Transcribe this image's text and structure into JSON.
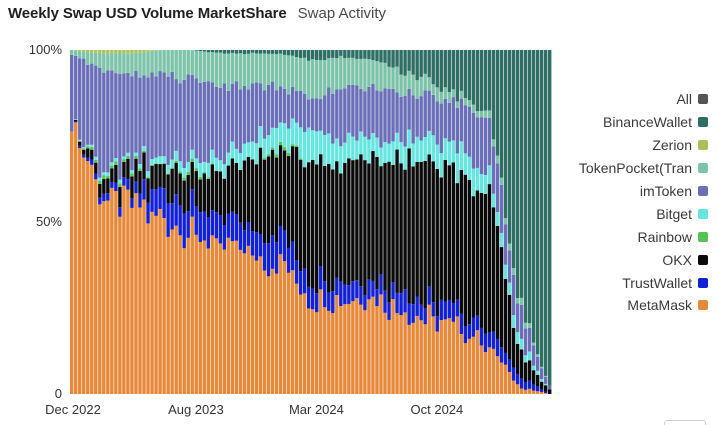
{
  "header": {
    "title": "Weekly Swap USD Volume MarketShare",
    "subtitle": "Swap Activity"
  },
  "chart_data": {
    "type": "area",
    "stacked": true,
    "style": "stacked weekly bars normalized to 100%",
    "title": "Weekly Swap USD Volume MarketShare",
    "xlabel": "",
    "ylabel": "",
    "ylim": [
      0,
      100
    ],
    "y_ticks": [
      "100%",
      "50%",
      "0"
    ],
    "x_ticks": [
      "Dec 2022",
      "Aug 2023",
      "Mar 2024",
      "Oct 2024"
    ],
    "x": [
      "Dec 2022",
      "Feb 2023",
      "Apr 2023",
      "Jun 2023",
      "Aug 2023",
      "Oct 2023",
      "Dec 2023",
      "Feb 2024",
      "Mar 2024",
      "May 2024",
      "Jul 2024",
      "Sep 2024",
      "Oct 2024",
      "Dec 2024",
      "Feb 2025",
      "Mar 2025",
      "Apr 2025"
    ],
    "series": [
      {
        "name": "MetaMask",
        "color": "#e6893a",
        "values": [
          77,
          59,
          56,
          52,
          47,
          43,
          41,
          38,
          28,
          28,
          29,
          24,
          22,
          19,
          14,
          2,
          0
        ]
      },
      {
        "name": "TrustWallet",
        "color": "#1220d6",
        "values": [
          0,
          2,
          3,
          8,
          9,
          8,
          7,
          9,
          6,
          6,
          5,
          6,
          5,
          5,
          5,
          3,
          0
        ]
      },
      {
        "name": "OKX",
        "color": "#0a0a0a",
        "values": [
          0,
          4,
          6,
          8,
          10,
          13,
          20,
          25,
          33,
          34,
          34,
          38,
          40,
          40,
          38,
          8,
          1
        ]
      },
      {
        "name": "Rainbow",
        "color": "#55c255",
        "values": [
          0,
          1,
          1,
          0,
          1,
          0,
          0,
          1,
          0,
          0,
          0,
          0,
          0,
          0,
          0,
          0,
          0
        ]
      },
      {
        "name": "Bitget",
        "color": "#67e6df",
        "values": [
          0,
          1,
          1,
          2,
          3,
          4,
          5,
          7,
          9,
          7,
          6,
          6,
          7,
          8,
          5,
          3,
          0
        ]
      },
      {
        "name": "imToken",
        "color": "#6b6fb8",
        "values": [
          22,
          27,
          26,
          23,
          22,
          21,
          17,
          10,
          10,
          14,
          15,
          13,
          13,
          13,
          16,
          10,
          1
        ]
      },
      {
        "name": "TokenPocket(Tran",
        "color": "#7dc3a9",
        "values": [
          1,
          5,
          6,
          7,
          8,
          10,
          9,
          9,
          11,
          9,
          8,
          7,
          4,
          2,
          2,
          2,
          0
        ]
      },
      {
        "name": "Zerion",
        "color": "#a8c25a",
        "values": [
          0,
          1,
          1,
          0,
          0,
          0,
          0,
          0,
          0,
          0,
          0,
          0,
          0,
          0,
          0,
          0,
          0
        ]
      },
      {
        "name": "BinanceWallet",
        "color": "#2f6e63",
        "values": [
          0,
          0,
          0,
          0,
          0,
          1,
          1,
          1,
          3,
          2,
          3,
          6,
          9,
          13,
          20,
          72,
          98
        ]
      }
    ],
    "legend": {
      "position": "right",
      "items": [
        {
          "label": "All",
          "color": "#555555"
        },
        {
          "label": "BinanceWallet",
          "color": "#2f6e63"
        },
        {
          "label": "Zerion",
          "color": "#a8c25a"
        },
        {
          "label": "TokenPocket(Tran",
          "color": "#7dc3a9"
        },
        {
          "label": "imToken",
          "color": "#6b6fb8"
        },
        {
          "label": "Bitget",
          "color": "#67e6df"
        },
        {
          "label": "Rainbow",
          "color": "#55c255"
        },
        {
          "label": "OKX",
          "color": "#0a0a0a"
        },
        {
          "label": "TrustWallet",
          "color": "#1220d6"
        },
        {
          "label": "MetaMask",
          "color": "#e6893a"
        }
      ]
    },
    "grid": false
  }
}
